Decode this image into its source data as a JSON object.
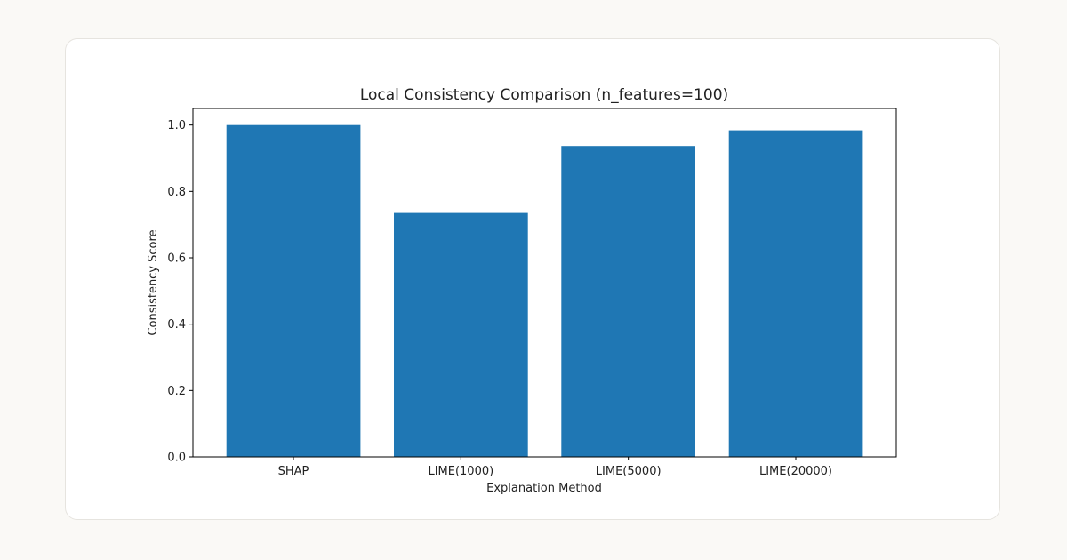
{
  "chart_data": {
    "type": "bar",
    "title": "Local Consistency Comparison (n_features=100)",
    "xlabel": "Explanation Method",
    "ylabel": "Consistency Score",
    "categories": [
      "SHAP",
      "LIME(1000)",
      "LIME(5000)",
      "LIME(20000)"
    ],
    "values": [
      1.0,
      0.735,
      0.937,
      0.984
    ],
    "ylim": [
      0,
      1.05
    ],
    "yticks": [
      "0.0",
      "0.2",
      "0.4",
      "0.6",
      "0.8",
      "1.0"
    ],
    "bar_color": "#1f77b4",
    "grid": false
  }
}
